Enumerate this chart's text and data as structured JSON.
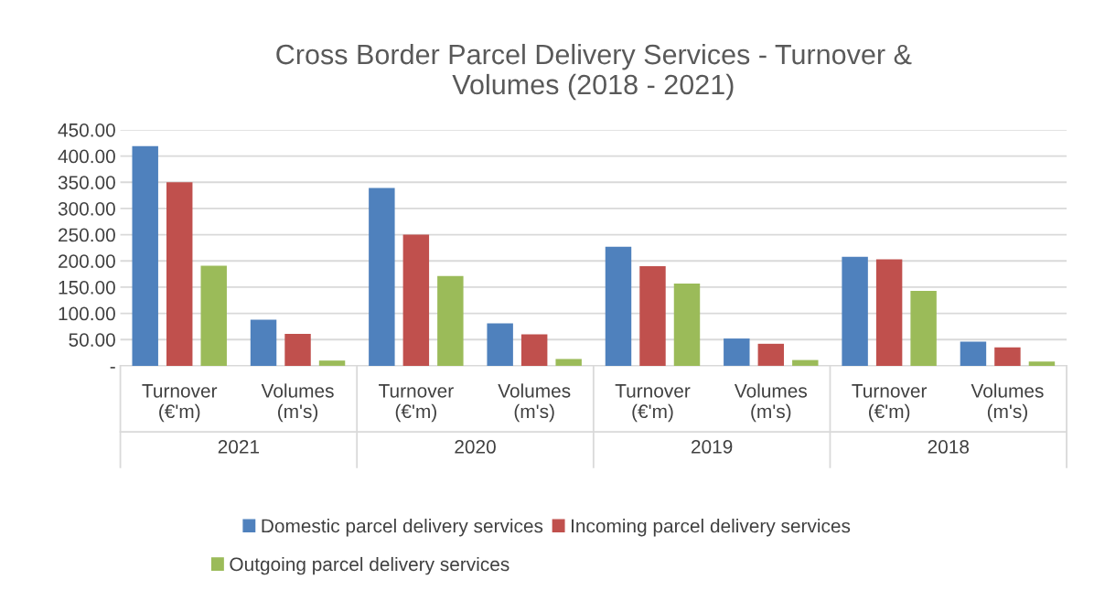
{
  "chart_data": {
    "type": "bar",
    "title": "Cross Border Parcel Delivery Services - Turnover &\nVolumes (2018 - 2021)",
    "categories": [
      "Turnover\n(€'m)",
      "Volumes\n(m's)",
      "Turnover\n(€'m)",
      "Volumes\n(m's)",
      "Turnover\n(€'m)",
      "Volumes\n(m's)",
      "Turnover\n(€'m)",
      "Volumes\n(m's)"
    ],
    "annotations": [
      "2021",
      "2020",
      "2019",
      "2018"
    ],
    "series": [
      {
        "name": "Domestic parcel delivery services",
        "color": "#4f81bd",
        "values": [
          419,
          88,
          339,
          81,
          227,
          52,
          208,
          46
        ]
      },
      {
        "name": "Incoming parcel delivery services",
        "color": "#c0504d",
        "values": [
          350,
          61,
          250,
          60,
          190,
          42,
          203,
          35
        ]
      },
      {
        "name": "Outgoing parcel delivery services",
        "color": "#9bbb59",
        "values": [
          191,
          10,
          171,
          13,
          157,
          11,
          143,
          8
        ]
      }
    ],
    "ylim": [
      0,
      450
    ],
    "yticks": [
      {
        "value": 0,
        "label": "-"
      },
      {
        "value": 50,
        "label": "50.00"
      },
      {
        "value": 100,
        "label": "100.00"
      },
      {
        "value": 150,
        "label": "150.00"
      },
      {
        "value": 200,
        "label": "200.00"
      },
      {
        "value": 250,
        "label": "250.00"
      },
      {
        "value": 300,
        "label": "300.00"
      },
      {
        "value": 350,
        "label": "350.00"
      },
      {
        "value": 400,
        "label": "400.00"
      },
      {
        "value": 450,
        "label": "450.00"
      }
    ],
    "grid": "y",
    "legend": "bottom"
  }
}
